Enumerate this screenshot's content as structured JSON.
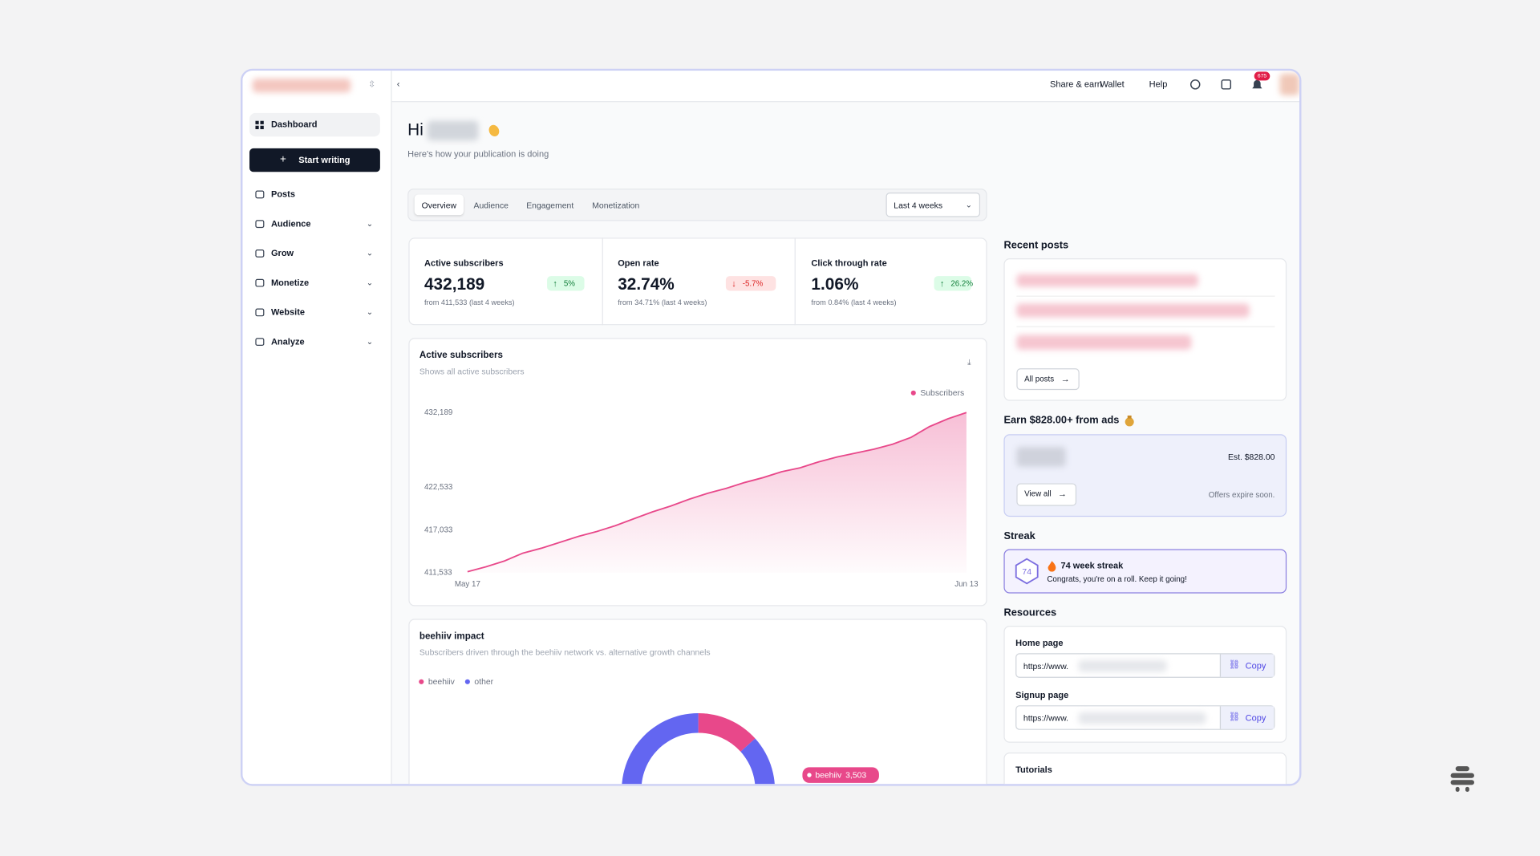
{
  "topbar": {
    "links": [
      "Share & earn",
      "Wallet",
      "Help"
    ],
    "notifications": "675"
  },
  "sidebar": {
    "dashboard": "Dashboard",
    "new_post": "Start writing",
    "items": [
      "Posts",
      "Audience",
      "Grow",
      "Monetize",
      "Website",
      "Analyze"
    ]
  },
  "greeting": {
    "title": "Hi",
    "subtitle": "Here's how your publication is doing"
  },
  "tabs": {
    "items": [
      "Overview",
      "Audience",
      "Engagement",
      "Monetization"
    ],
    "range": "Last 4 weeks"
  },
  "stats": [
    {
      "label": "Active subscribers",
      "value": "432,189",
      "change": "5%",
      "note": "from 411,533 (last 4 weeks)",
      "trend": "up"
    },
    {
      "label": "Open rate",
      "value": "32.74%",
      "change": "-5.7%",
      "note": "from 34.71% (last 4 weeks)",
      "trend": "down"
    },
    {
      "label": "Click through rate",
      "value": "1.06%",
      "change": "26.2%",
      "note": "from 0.84% (last 4 weeks)",
      "trend": "up"
    }
  ],
  "chart_data": [
    {
      "type": "line",
      "title": "Active subscribers",
      "subtitle": "Shows all active subscribers",
      "categories": [
        "May 17",
        null,
        null,
        null,
        null,
        null,
        null,
        null,
        null,
        null,
        null,
        null,
        null,
        null,
        null,
        null,
        null,
        null,
        null,
        null,
        null,
        null,
        null,
        null,
        null,
        null,
        null,
        "Jun 13"
      ],
      "series": [
        {
          "name": "Subscribers",
          "color": "#e8488a",
          "values": [
            411660,
            412292,
            413051,
            414063,
            414696,
            415455,
            416214,
            416846,
            417605,
            418491,
            419376,
            420135,
            421021,
            421780,
            422412,
            423171,
            423804,
            424563,
            425069,
            425828,
            426460,
            426966,
            427472,
            428105,
            428990,
            430382,
            431393,
            432189
          ]
        }
      ],
      "ylim": [
        411533,
        432189
      ],
      "yticks": [
        {
          "value": 411533,
          "label": "411,533"
        },
        {
          "value": 417033,
          "label": "417,033"
        },
        {
          "value": 422533,
          "label": "422,533"
        },
        {
          "value": 432189,
          "label": "432,189"
        }
      ],
      "grid": false
    },
    {
      "type": "pie",
      "title": "beehiiv impact",
      "subtitle": "Subscribers driven through the beehiiv network vs. alternative growth channels",
      "categories": [
        "beehiiv",
        "other"
      ],
      "values": [
        3503,
        22800
      ],
      "value_labels": [
        "3,503",
        null
      ],
      "colors": [
        "#e8488a",
        "#6366f1"
      ]
    }
  ],
  "recent_posts": {
    "title": "Recent posts",
    "button": "All posts"
  },
  "ads": {
    "title": "Earn $828.00+ from ads",
    "estimate": "Est. $828.00",
    "button": "View all",
    "note": "Offers expire soon."
  },
  "streak": {
    "title": "Streak",
    "weeks": "74",
    "headline": "74 week streak",
    "message": "Congrats, you're on a roll. Keep it going!"
  },
  "resources": {
    "title": "Resources",
    "links": [
      {
        "label": "Home page",
        "url": "https://www.",
        "button": "Copy"
      },
      {
        "label": "Signup page",
        "url": "https://www.",
        "button": "Copy"
      }
    ]
  },
  "tutorials": {
    "title": "Tutorials"
  }
}
